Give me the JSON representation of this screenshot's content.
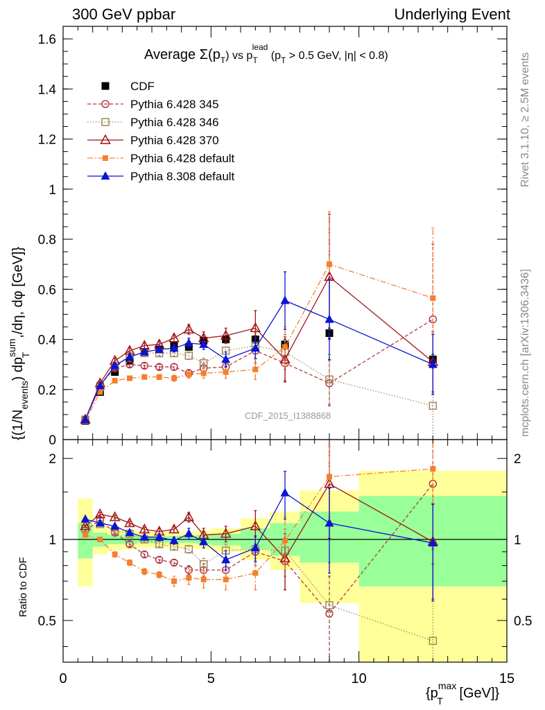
{
  "header": {
    "left": "300 GeV ppbar",
    "right": "Underlying Event"
  },
  "side_labels": {
    "rivet": "Rivet 3.1.10, ≥ 2.5M events",
    "mcplots": "mcplots.cern.ch [arXiv:1306.3436]"
  },
  "colors": {
    "cdf": "#000000",
    "py345": "#b03a48",
    "py346": "#a0865a",
    "py370": "#a01414",
    "pydefault": "#f57f2e",
    "py8": "#0a14d2",
    "band_inner": "#99ff99",
    "band_outer": "#ffff99"
  },
  "chart_data": [
    {
      "type": "scatter",
      "title": "Average Σ(p_T) vs p_T^lead (p_T > 0.5 GeV, |η| < 0.8)",
      "title_parts": {
        "prefix": "Average ",
        "sigma": "Σ(p",
        "sub_t": "T",
        "mid": ") vs p",
        "sup_lead": "lead",
        "suffix": " (p",
        "suffix2": " > 0.5 GeV, |η| < 0.8)"
      },
      "ylabel": "{(1/N_events) dp_T^sum/dη, dφ [GeV]}",
      "ylabel_parts": {
        "a": "{(1/N",
        "b": "events",
        "c": ") dp",
        "d": "sum",
        "e": "T",
        "f": ",/dη, dφ [GeV]}"
      },
      "watermark": "CDF_2015_I1388868",
      "xlim": [
        0,
        15
      ],
      "ylim": [
        0,
        1.65
      ],
      "y_ticks": [
        "0",
        "0.2",
        "0.4",
        "0.6",
        "0.8",
        "1",
        "1.2",
        "1.4",
        "1.6"
      ],
      "legend_position": "top-left",
      "series": [
        {
          "name": "CDF",
          "key": "cdf",
          "marker": "filled-square",
          "line": "none",
          "x": [
            0.75,
            1.25,
            1.75,
            2.25,
            2.75,
            3.25,
            3.75,
            4.25,
            4.75,
            5.5,
            6.5,
            7.5,
            9.0,
            12.5
          ],
          "y": [
            0.075,
            0.19,
            0.27,
            0.315,
            0.35,
            0.36,
            0.375,
            0.37,
            0.395,
            0.4,
            0.4,
            0.38,
            0.425,
            0.32
          ],
          "err": [
            0.005,
            0.008,
            0.01,
            0.01,
            0.01,
            0.01,
            0.01,
            0.01,
            0.012,
            0.015,
            0.015,
            0.02,
            0.02,
            0.02
          ]
        },
        {
          "name": "Pythia 6.428 345",
          "key": "py345",
          "marker": "open-circle",
          "line": "dashed",
          "x": [
            0.75,
            1.25,
            1.75,
            2.25,
            2.75,
            3.25,
            3.75,
            4.25,
            4.75,
            5.5,
            6.5,
            7.5,
            9.0,
            12.5
          ],
          "y": [
            0.08,
            0.22,
            0.285,
            0.3,
            0.295,
            0.29,
            0.29,
            0.265,
            0.285,
            0.29,
            0.355,
            0.305,
            0.225,
            0.48
          ],
          "err": [
            0.004,
            0.008,
            0.01,
            0.01,
            0.01,
            0.01,
            0.012,
            0.015,
            0.02,
            0.03,
            0.05,
            0.07,
            0.09,
            0.3
          ]
        },
        {
          "name": "Pythia 6.428 346",
          "key": "py346",
          "marker": "open-square",
          "line": "dotted",
          "x": [
            0.75,
            1.25,
            1.75,
            2.25,
            2.75,
            3.25,
            3.75,
            4.25,
            4.75,
            5.5,
            6.5,
            7.5,
            9.0,
            12.5
          ],
          "y": [
            0.08,
            0.21,
            0.295,
            0.335,
            0.345,
            0.345,
            0.345,
            0.335,
            0.305,
            0.355,
            0.375,
            0.35,
            0.24,
            0.135
          ],
          "err": [
            0.004,
            0.008,
            0.01,
            0.01,
            0.01,
            0.01,
            0.012,
            0.015,
            0.02,
            0.03,
            0.05,
            0.07,
            0.1,
            0.15
          ]
        },
        {
          "name": "Pythia 6.428 370",
          "key": "py370",
          "marker": "open-triangle",
          "line": "solid",
          "x": [
            0.75,
            1.25,
            1.75,
            2.25,
            2.75,
            3.25,
            3.75,
            4.25,
            4.75,
            5.5,
            6.5,
            7.5,
            9.0,
            12.5
          ],
          "y": [
            0.08,
            0.225,
            0.315,
            0.355,
            0.375,
            0.38,
            0.405,
            0.44,
            0.405,
            0.415,
            0.445,
            0.32,
            0.65,
            0.31
          ],
          "err": [
            0.004,
            0.008,
            0.01,
            0.012,
            0.012,
            0.015,
            0.015,
            0.02,
            0.025,
            0.03,
            0.07,
            0.09,
            0.25,
            0.12
          ]
        },
        {
          "name": "Pythia 6.428 default",
          "key": "pydefault",
          "marker": "filled-square-small",
          "line": "dashdot",
          "x": [
            0.75,
            1.25,
            1.75,
            2.25,
            2.75,
            3.25,
            3.75,
            4.25,
            4.75,
            5.5,
            6.5,
            7.5,
            9.0,
            12.5
          ],
          "y": [
            0.075,
            0.19,
            0.235,
            0.245,
            0.25,
            0.25,
            0.245,
            0.26,
            0.265,
            0.27,
            0.28,
            0.37,
            0.7,
            0.565
          ],
          "err": [
            0.004,
            0.006,
            0.008,
            0.008,
            0.008,
            0.01,
            0.012,
            0.015,
            0.02,
            0.025,
            0.04,
            0.08,
            0.21,
            0.28
          ]
        },
        {
          "name": "Pythia 8.308 default",
          "key": "py8",
          "marker": "filled-triangle",
          "line": "solid",
          "x": [
            0.75,
            1.25,
            1.75,
            2.25,
            2.75,
            3.25,
            3.75,
            4.25,
            4.75,
            5.5,
            6.5,
            7.5,
            9.0,
            12.5
          ],
          "y": [
            0.08,
            0.215,
            0.295,
            0.33,
            0.35,
            0.36,
            0.365,
            0.385,
            0.38,
            0.32,
            0.365,
            0.555,
            0.48,
            0.3
          ],
          "err": [
            0.004,
            0.008,
            0.01,
            0.01,
            0.01,
            0.012,
            0.015,
            0.02,
            0.02,
            0.03,
            0.04,
            0.115,
            0.16,
            0.12
          ]
        }
      ]
    },
    {
      "type": "scatter",
      "title": "",
      "ylabel": "Ratio to CDF",
      "xlabel": "{p_T^max [GeV]}",
      "xlabel_parts": {
        "a": "{p",
        "b": "max",
        "c": "T",
        "d": " [GeV]}"
      },
      "xlim": [
        0,
        15
      ],
      "ylim": [
        0.35,
        2.35
      ],
      "x_ticks": [
        "0",
        "5",
        "10",
        "15"
      ],
      "y_ticks": [
        "0.5",
        "1",
        "2"
      ],
      "reference_line": 1,
      "bands": [
        {
          "x": [
            0.5,
            1.0
          ],
          "inner": [
            0.85,
            1.15
          ],
          "outer": [
            0.67,
            1.42
          ]
        },
        {
          "x": [
            1.0,
            1.5
          ],
          "inner": [
            0.94,
            1.06
          ],
          "outer": [
            0.88,
            1.12
          ]
        },
        {
          "x": [
            1.5,
            2.0
          ],
          "inner": [
            0.96,
            1.04
          ],
          "outer": [
            0.91,
            1.09
          ]
        },
        {
          "x": [
            2.0,
            2.5
          ],
          "inner": [
            0.96,
            1.04
          ],
          "outer": [
            0.92,
            1.08
          ]
        },
        {
          "x": [
            2.5,
            3.0
          ],
          "inner": [
            0.97,
            1.03
          ],
          "outer": [
            0.93,
            1.07
          ]
        },
        {
          "x": [
            3.0,
            3.5
          ],
          "inner": [
            0.97,
            1.03
          ],
          "outer": [
            0.93,
            1.07
          ]
        },
        {
          "x": [
            3.5,
            4.0
          ],
          "inner": [
            0.97,
            1.03
          ],
          "outer": [
            0.93,
            1.07
          ]
        },
        {
          "x": [
            4.0,
            4.5
          ],
          "inner": [
            0.97,
            1.03
          ],
          "outer": [
            0.93,
            1.07
          ]
        },
        {
          "x": [
            4.5,
            5.0
          ],
          "inner": [
            0.96,
            1.04
          ],
          "outer": [
            0.92,
            1.08
          ]
        },
        {
          "x": [
            5.0,
            6.0
          ],
          "inner": [
            0.95,
            1.05
          ],
          "outer": [
            0.9,
            1.1
          ]
        },
        {
          "x": [
            6.0,
            7.0
          ],
          "inner": [
            0.92,
            1.1
          ],
          "outer": [
            0.84,
            1.2
          ]
        },
        {
          "x": [
            7.0,
            8.0
          ],
          "inner": [
            0.87,
            1.15
          ],
          "outer": [
            0.77,
            1.27
          ]
        },
        {
          "x": [
            8.0,
            10.0
          ],
          "inner": [
            0.82,
            1.27
          ],
          "outer": [
            0.58,
            1.52
          ]
        },
        {
          "x": [
            10.0,
            15.0
          ],
          "inner": [
            0.67,
            1.45
          ],
          "outer": [
            0.35,
            1.8
          ]
        }
      ],
      "series": [
        {
          "name": "Pythia 6.428 345",
          "key": "py345",
          "marker": "open-circle",
          "line": "dashed",
          "x": [
            0.75,
            1.25,
            1.75,
            2.25,
            2.75,
            3.25,
            3.75,
            4.25,
            4.75,
            5.5,
            6.5,
            7.5,
            9.0,
            12.5
          ],
          "y": [
            1.08,
            1.18,
            1.06,
            0.96,
            0.88,
            0.84,
            0.82,
            0.77,
            0.77,
            0.77,
            0.9,
            0.83,
            0.53,
            1.61
          ],
          "err": [
            0.01,
            0.02,
            0.02,
            0.02,
            0.02,
            0.02,
            0.02,
            0.03,
            0.04,
            0.05,
            0.1,
            0.18,
            0.2,
            0.8
          ]
        },
        {
          "name": "Pythia 6.428 346",
          "key": "py346",
          "marker": "open-square",
          "line": "dotted",
          "x": [
            0.75,
            1.25,
            1.75,
            2.25,
            2.75,
            3.25,
            3.75,
            4.25,
            4.75,
            5.5,
            6.5,
            7.5,
            9.0,
            12.5
          ],
          "y": [
            1.1,
            1.14,
            1.08,
            1.05,
            1.0,
            0.96,
            0.94,
            0.92,
            0.81,
            0.91,
            0.92,
            0.91,
            0.57,
            0.42
          ],
          "err": [
            0.01,
            0.02,
            0.02,
            0.02,
            0.02,
            0.02,
            0.02,
            0.03,
            0.04,
            0.05,
            0.1,
            0.18,
            0.25,
            0.5
          ]
        },
        {
          "name": "Pythia 6.428 370",
          "key": "py370",
          "marker": "open-triangle",
          "line": "solid",
          "x": [
            0.75,
            1.25,
            1.75,
            2.25,
            2.75,
            3.25,
            3.75,
            4.25,
            4.75,
            5.5,
            6.5,
            7.5,
            9.0,
            12.5
          ],
          "y": [
            1.12,
            1.24,
            1.21,
            1.15,
            1.09,
            1.07,
            1.09,
            1.21,
            1.04,
            1.05,
            1.12,
            0.85,
            1.61,
            0.98
          ],
          "err": [
            0.01,
            0.02,
            0.02,
            0.02,
            0.02,
            0.03,
            0.03,
            0.05,
            0.06,
            0.07,
            0.16,
            0.2,
            0.6,
            0.38
          ]
        },
        {
          "name": "Pythia 6.428 default",
          "key": "pydefault",
          "marker": "filled-square-small",
          "line": "dashdot",
          "x": [
            0.75,
            1.25,
            1.75,
            2.25,
            2.75,
            3.25,
            3.75,
            4.25,
            4.75,
            5.5,
            6.5,
            7.5,
            9.0,
            12.5
          ],
          "y": [
            1.04,
            1.0,
            0.88,
            0.82,
            0.76,
            0.74,
            0.7,
            0.72,
            0.71,
            0.71,
            0.75,
            0.99,
            1.71,
            1.83
          ],
          "err": [
            0.01,
            0.02,
            0.02,
            0.02,
            0.02,
            0.02,
            0.03,
            0.04,
            0.05,
            0.06,
            0.1,
            0.22,
            0.5,
            0.9
          ]
        },
        {
          "name": "Pythia 8.308 default",
          "key": "py8",
          "marker": "filled-triangle",
          "line": "solid",
          "x": [
            0.75,
            1.25,
            1.75,
            2.25,
            2.75,
            3.25,
            3.75,
            4.25,
            4.75,
            5.5,
            6.5,
            7.5,
            9.0,
            12.5
          ],
          "y": [
            1.19,
            1.15,
            1.12,
            1.06,
            1.02,
            1.02,
            0.99,
            1.05,
            0.98,
            0.84,
            0.93,
            1.49,
            1.15,
            0.97
          ],
          "err": [
            0.01,
            0.02,
            0.02,
            0.02,
            0.02,
            0.03,
            0.03,
            0.05,
            0.05,
            0.07,
            0.1,
            0.3,
            0.4,
            0.38
          ]
        }
      ]
    }
  ]
}
